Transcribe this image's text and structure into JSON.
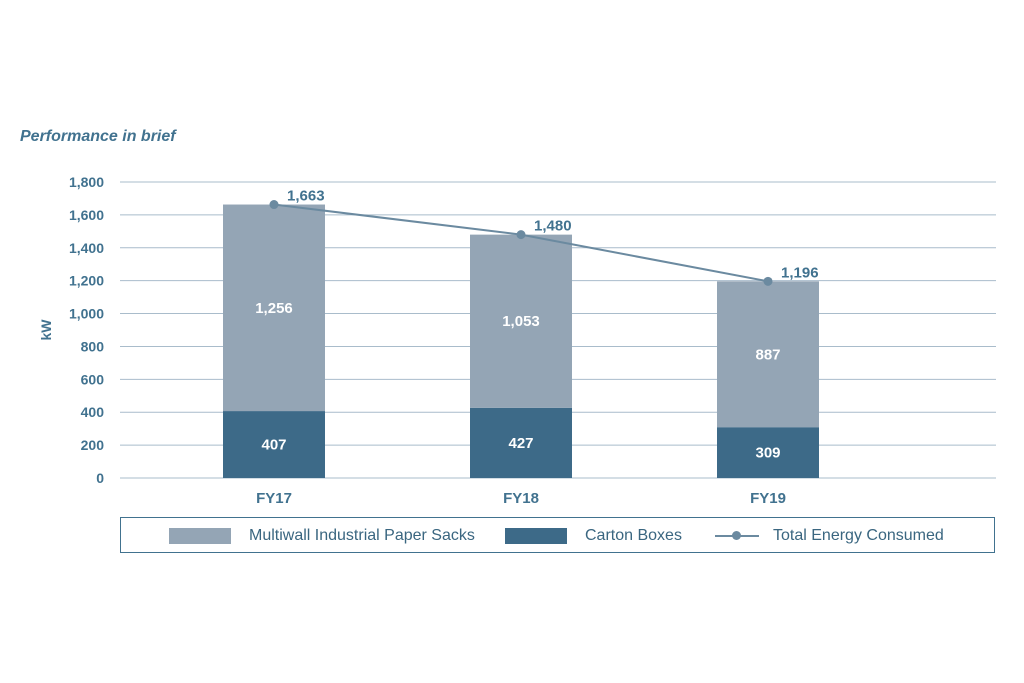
{
  "chart_data": {
    "type": "bar",
    "title": "Performance in brief",
    "ylabel": "kW",
    "ylim": [
      0,
      1800
    ],
    "yticks": [
      "1,800",
      "1,600",
      "1,400",
      "1,200",
      "1,000",
      "800",
      "600",
      "400",
      "200",
      "0"
    ],
    "categories": [
      "FY17",
      "FY18",
      "FY19"
    ],
    "series": [
      {
        "name": "Carton Boxes",
        "type": "bar",
        "stacked": true,
        "color": "#3d6a88",
        "values": [
          407,
          427,
          309
        ],
        "labels": [
          "407",
          "427",
          "309"
        ]
      },
      {
        "name": "Multiwall Industrial Paper Sacks",
        "type": "bar",
        "stacked": true,
        "color": "#94a5b5",
        "values": [
          1256,
          1053,
          887
        ],
        "labels": [
          "1,256",
          "1,053",
          "887"
        ]
      },
      {
        "name": "Total Energy Consumed",
        "type": "line",
        "color": "#6b8aa0",
        "values": [
          1663,
          1480,
          1196
        ],
        "labels": [
          "1,663",
          "1,480",
          "1,196"
        ]
      }
    ],
    "grid": true,
    "legend": "bottom"
  },
  "legend": {
    "item1": "Multiwall Industrial Paper Sacks",
    "item2": "Carton Boxes",
    "item3": "Total Energy Consumed"
  }
}
